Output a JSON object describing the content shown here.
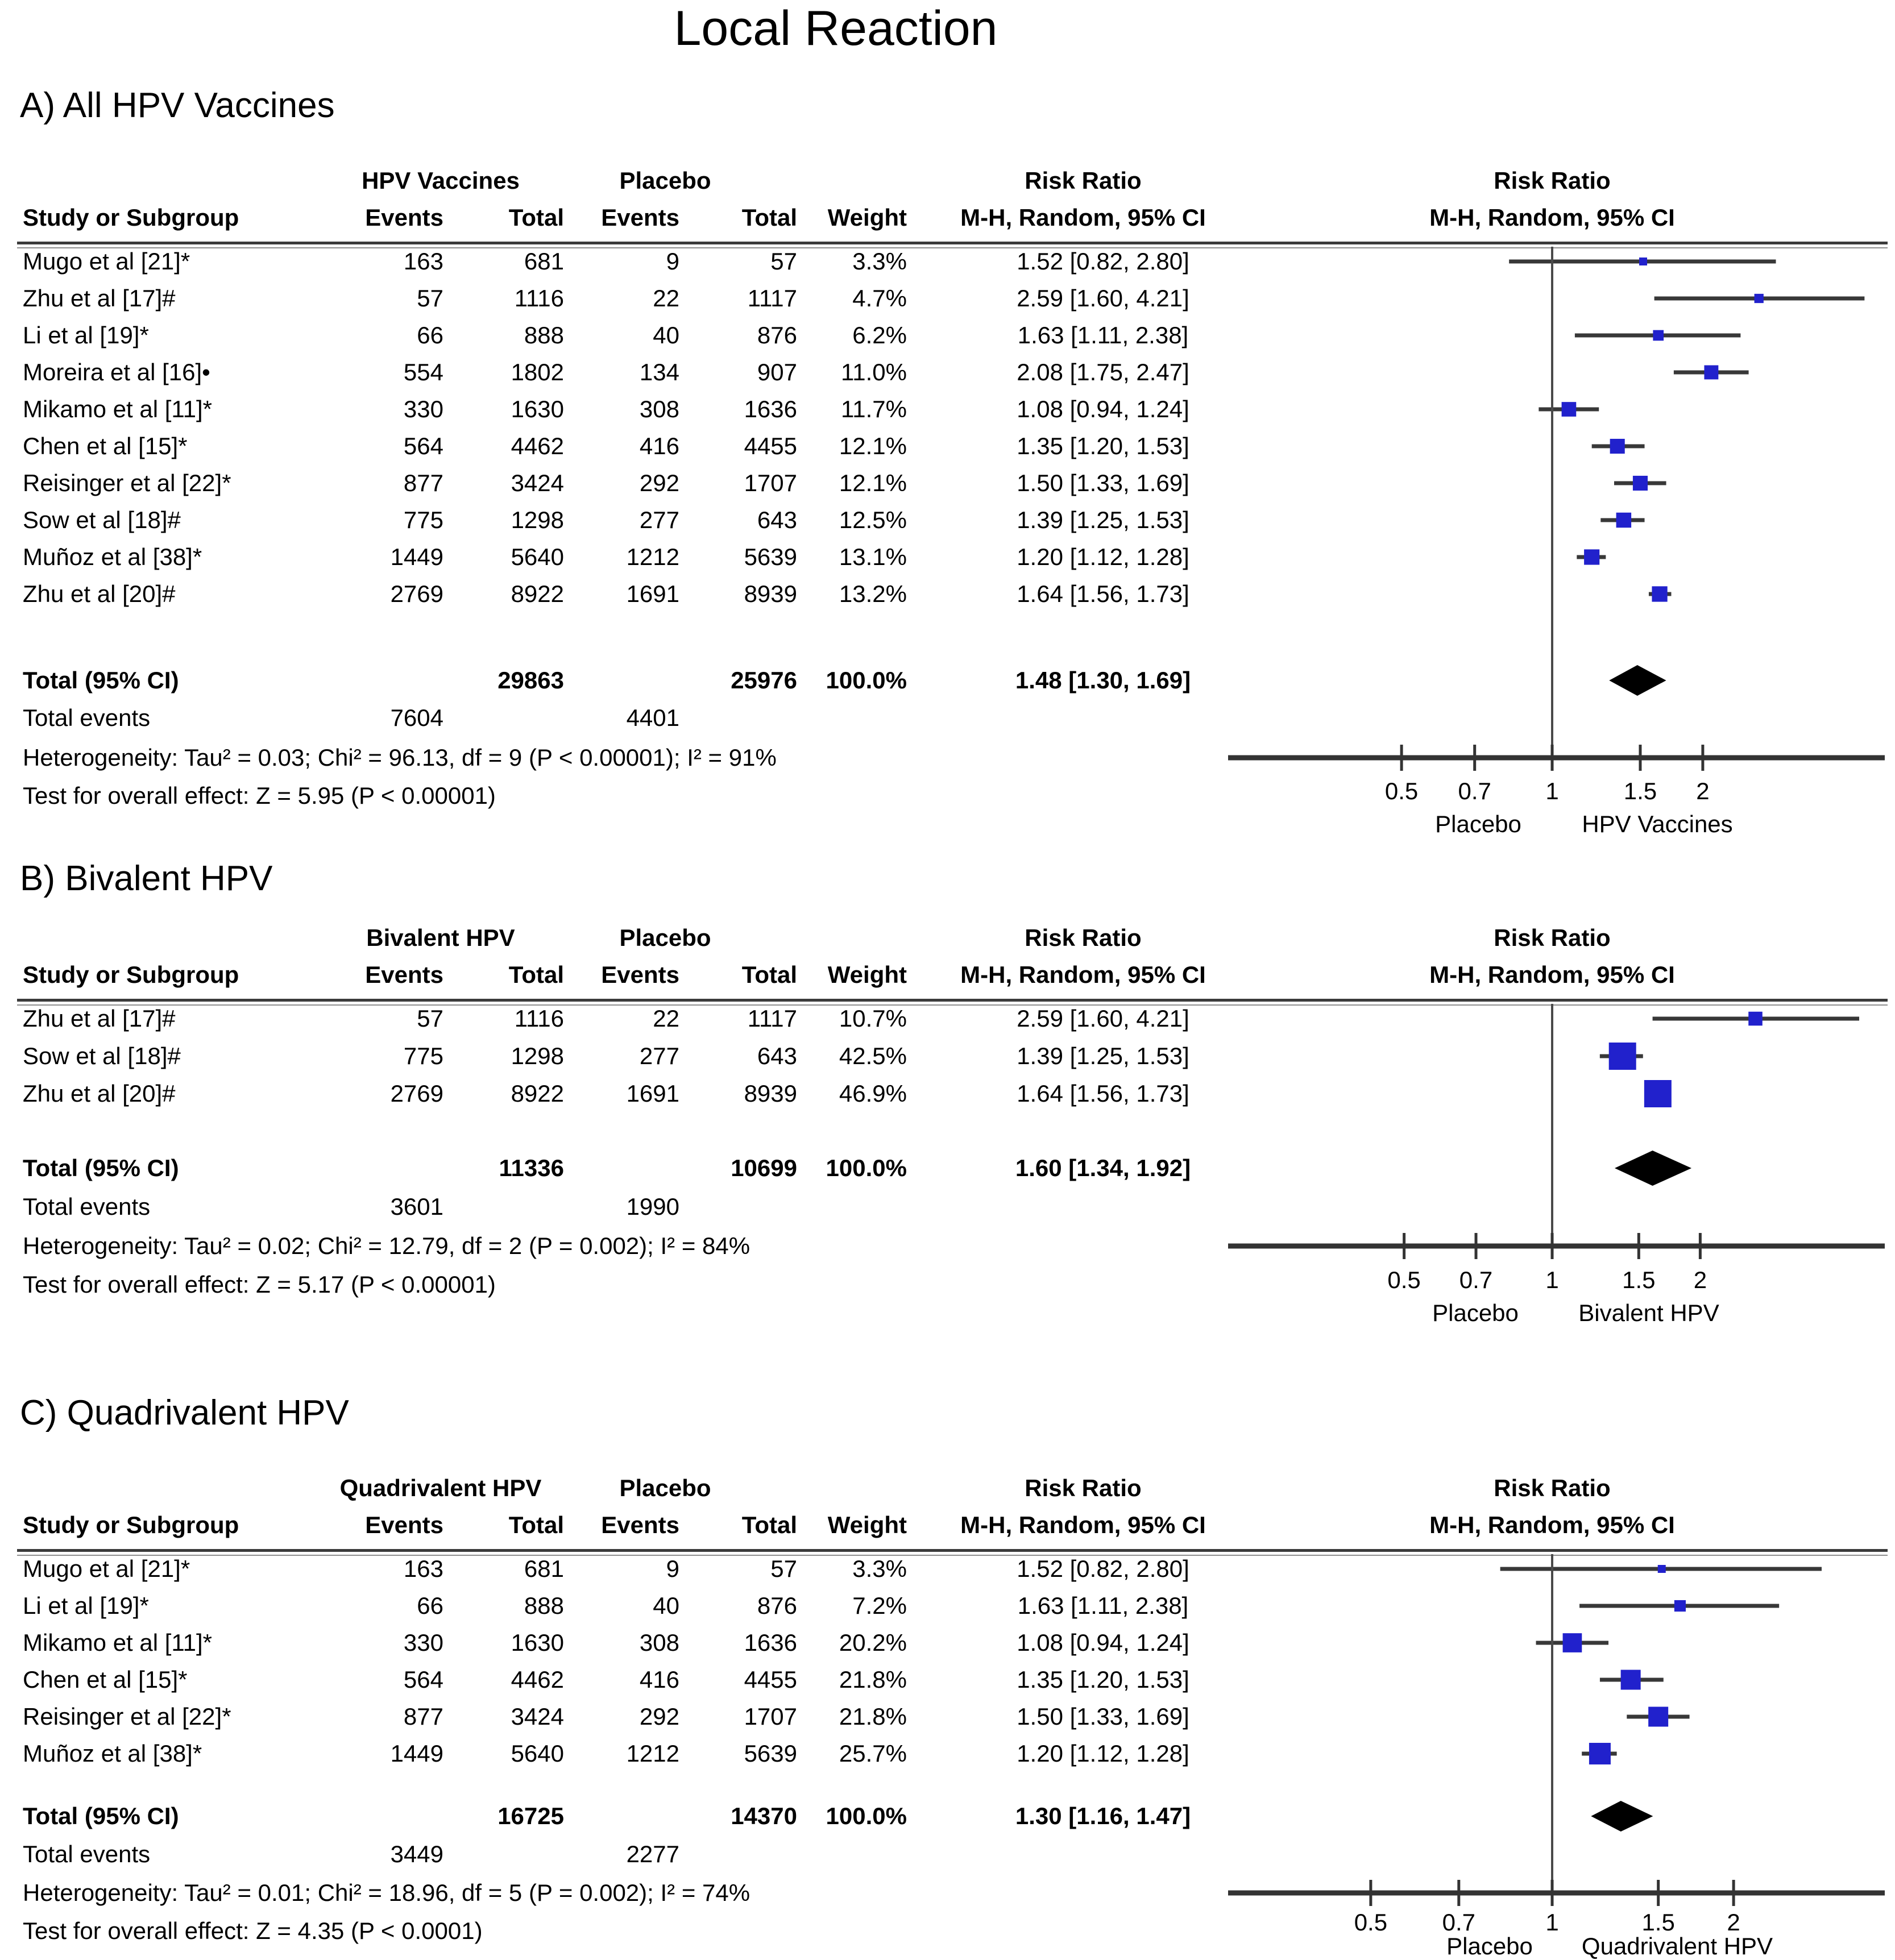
{
  "title": "Local Reaction",
  "colors": {
    "marker_blue": "#2121CC",
    "ci_line": "#383838",
    "diamond_black": "#000000",
    "axis_line": "#333333",
    "text": "#000000"
  },
  "table_headers": {
    "study": "Study or Subgroup",
    "events": "Events",
    "total": "Total",
    "weight": "Weight",
    "rr_line1": "Risk Ratio",
    "rr_line2": "M-H, Random, 95% CI"
  },
  "chart_data": [
    {
      "type": "forest",
      "section_label": "A) All HPV Vaccines",
      "group1_label": "HPV Vaccines",
      "group2_label": "Placebo",
      "studies": [
        {
          "study": "Mugo et al [21]*",
          "events1": "163",
          "total1": "681",
          "events2": "9",
          "total2": "57",
          "weight": "3.3%",
          "w": 3.3,
          "rr_text": "1.52 [0.82, 2.80]",
          "rr": 1.52,
          "lo": 0.82,
          "hi": 2.8
        },
        {
          "study": "Zhu et al [17]#",
          "events1": "57",
          "total1": "1116",
          "events2": "22",
          "total2": "1117",
          "weight": "4.7%",
          "w": 4.7,
          "rr_text": "2.59 [1.60, 4.21]",
          "rr": 2.59,
          "lo": 1.6,
          "hi": 4.21
        },
        {
          "study": "Li et al [19]*",
          "events1": "66",
          "total1": "888",
          "events2": "40",
          "total2": "876",
          "weight": "6.2%",
          "w": 6.2,
          "rr_text": "1.63 [1.11, 2.38]",
          "rr": 1.63,
          "lo": 1.11,
          "hi": 2.38
        },
        {
          "study": "Moreira et al [16]•",
          "events1": "554",
          "total1": "1802",
          "events2": "134",
          "total2": "907",
          "weight": "11.0%",
          "w": 11.0,
          "rr_text": "2.08 [1.75, 2.47]",
          "rr": 2.08,
          "lo": 1.75,
          "hi": 2.47
        },
        {
          "study": "Mikamo et al [11]*",
          "events1": "330",
          "total1": "1630",
          "events2": "308",
          "total2": "1636",
          "weight": "11.7%",
          "w": 11.7,
          "rr_text": "1.08 [0.94, 1.24]",
          "rr": 1.08,
          "lo": 0.94,
          "hi": 1.24
        },
        {
          "study": "Chen et al [15]*",
          "events1": "564",
          "total1": "4462",
          "events2": "416",
          "total2": "4455",
          "weight": "12.1%",
          "w": 12.1,
          "rr_text": "1.35 [1.20, 1.53]",
          "rr": 1.35,
          "lo": 1.2,
          "hi": 1.53
        },
        {
          "study": "Reisinger et al [22]*",
          "events1": "877",
          "total1": "3424",
          "events2": "292",
          "total2": "1707",
          "weight": "12.1%",
          "w": 12.1,
          "rr_text": "1.50 [1.33, 1.69]",
          "rr": 1.5,
          "lo": 1.33,
          "hi": 1.69
        },
        {
          "study": "Sow et al [18]#",
          "events1": "775",
          "total1": "1298",
          "events2": "277",
          "total2": "643",
          "weight": "12.5%",
          "w": 12.5,
          "rr_text": "1.39 [1.25, 1.53]",
          "rr": 1.39,
          "lo": 1.25,
          "hi": 1.53
        },
        {
          "study": "Muñoz et al [38]*",
          "events1": "1449",
          "total1": "5640",
          "events2": "1212",
          "total2": "5639",
          "weight": "13.1%",
          "w": 13.1,
          "rr_text": "1.20 [1.12, 1.28]",
          "rr": 1.2,
          "lo": 1.12,
          "hi": 1.28
        },
        {
          "study": "Zhu et al [20]#",
          "events1": "2769",
          "total1": "8922",
          "events2": "1691",
          "total2": "8939",
          "weight": "13.2%",
          "w": 13.2,
          "rr_text": "1.64 [1.56, 1.73]",
          "rr": 1.64,
          "lo": 1.56,
          "hi": 1.73
        }
      ],
      "total": {
        "label": "Total (95% CI)",
        "total1": "29863",
        "total2": "25976",
        "weight": "100.0%",
        "rr_text": "1.48 [1.30, 1.69]",
        "rr": 1.48,
        "lo": 1.3,
        "hi": 1.69
      },
      "total_events": {
        "label": "Total events",
        "events1": "7604",
        "events2": "4401"
      },
      "heterogeneity": "Heterogeneity: Tau² = 0.03; Chi² = 96.13, df = 9 (P < 0.00001); I² = 91%",
      "overall_effect": "Test for overall effect: Z = 5.95 (P < 0.00001)",
      "axis": {
        "scale": "log",
        "ticks": [
          0.5,
          0.7,
          1,
          1.5,
          2
        ],
        "tick_labels": [
          "0.5",
          "0.7",
          "1",
          "1.5",
          "2"
        ],
        "label_left": "Placebo",
        "label_right": "HPV Vaccines"
      }
    },
    {
      "type": "forest",
      "section_label": "B) Bivalent HPV",
      "group1_label": "Bivalent HPV",
      "group2_label": "Placebo",
      "studies": [
        {
          "study": "Zhu et al [17]#",
          "events1": "57",
          "total1": "1116",
          "events2": "22",
          "total2": "1117",
          "weight": "10.7%",
          "w": 10.7,
          "rr_text": "2.59 [1.60, 4.21]",
          "rr": 2.59,
          "lo": 1.6,
          "hi": 4.21
        },
        {
          "study": "Sow et al [18]#",
          "events1": "775",
          "total1": "1298",
          "events2": "277",
          "total2": "643",
          "weight": "42.5%",
          "w": 42.5,
          "rr_text": "1.39 [1.25, 1.53]",
          "rr": 1.39,
          "lo": 1.25,
          "hi": 1.53
        },
        {
          "study": "Zhu et al [20]#",
          "events1": "2769",
          "total1": "8922",
          "events2": "1691",
          "total2": "8939",
          "weight": "46.9%",
          "w": 46.9,
          "rr_text": "1.64 [1.56, 1.73]",
          "rr": 1.64,
          "lo": 1.56,
          "hi": 1.73
        }
      ],
      "total": {
        "label": "Total (95% CI)",
        "total1": "11336",
        "total2": "10699",
        "weight": "100.0%",
        "rr_text": "1.60 [1.34, 1.92]",
        "rr": 1.6,
        "lo": 1.34,
        "hi": 1.92
      },
      "total_events": {
        "label": "Total events",
        "events1": "3601",
        "events2": "1990"
      },
      "heterogeneity": "Heterogeneity: Tau² = 0.02; Chi² = 12.79, df = 2 (P = 0.002); I² = 84%",
      "overall_effect": "Test for overall effect: Z = 5.17 (P < 0.00001)",
      "axis": {
        "scale": "log",
        "ticks": [
          0.5,
          0.7,
          1,
          1.5,
          2
        ],
        "tick_labels": [
          "0.5",
          "0.7",
          "1",
          "1.5",
          "2"
        ],
        "label_left": "Placebo",
        "label_right": "Bivalent HPV"
      }
    },
    {
      "type": "forest",
      "section_label": "C) Quadrivalent HPV",
      "group1_label": "Quadrivalent HPV",
      "group2_label": "Placebo",
      "studies": [
        {
          "study": "Mugo et al [21]*",
          "events1": "163",
          "total1": "681",
          "events2": "9",
          "total2": "57",
          "weight": "3.3%",
          "w": 3.3,
          "rr_text": "1.52 [0.82, 2.80]",
          "rr": 1.52,
          "lo": 0.82,
          "hi": 2.8
        },
        {
          "study": "Li et al [19]*",
          "events1": "66",
          "total1": "888",
          "events2": "40",
          "total2": "876",
          "weight": "7.2%",
          "w": 7.2,
          "rr_text": "1.63 [1.11, 2.38]",
          "rr": 1.63,
          "lo": 1.11,
          "hi": 2.38
        },
        {
          "study": "Mikamo et al [11]*",
          "events1": "330",
          "total1": "1630",
          "events2": "308",
          "total2": "1636",
          "weight": "20.2%",
          "w": 20.2,
          "rr_text": "1.08 [0.94, 1.24]",
          "rr": 1.08,
          "lo": 0.94,
          "hi": 1.24
        },
        {
          "study": "Chen et al [15]*",
          "events1": "564",
          "total1": "4462",
          "events2": "416",
          "total2": "4455",
          "weight": "21.8%",
          "w": 21.8,
          "rr_text": "1.35 [1.20, 1.53]",
          "rr": 1.35,
          "lo": 1.2,
          "hi": 1.53
        },
        {
          "study": "Reisinger et al [22]*",
          "events1": "877",
          "total1": "3424",
          "events2": "292",
          "total2": "1707",
          "weight": "21.8%",
          "w": 21.8,
          "rr_text": "1.50 [1.33, 1.69]",
          "rr": 1.5,
          "lo": 1.33,
          "hi": 1.69
        },
        {
          "study": "Muñoz et al [38]*",
          "events1": "1449",
          "total1": "5640",
          "events2": "1212",
          "total2": "5639",
          "weight": "25.7%",
          "w": 25.7,
          "rr_text": "1.20 [1.12, 1.28]",
          "rr": 1.2,
          "lo": 1.12,
          "hi": 1.28
        }
      ],
      "total": {
        "label": "Total (95% CI)",
        "total1": "16725",
        "total2": "14370",
        "weight": "100.0%",
        "rr_text": "1.30 [1.16, 1.47]",
        "rr": 1.3,
        "lo": 1.16,
        "hi": 1.47
      },
      "total_events": {
        "label": "Total events",
        "events1": "3449",
        "events2": "2277"
      },
      "heterogeneity": "Heterogeneity: Tau² = 0.01; Chi² = 18.96, df = 5 (P = 0.002); I² = 74%",
      "overall_effect": "Test for overall effect: Z = 4.35 (P < 0.0001)",
      "axis": {
        "scale": "log",
        "ticks": [
          0.5,
          0.7,
          1,
          1.5,
          2
        ],
        "tick_labels": [
          "0.5",
          "0.7",
          "1",
          "1.5",
          "2"
        ],
        "label_left": "Placebo",
        "label_right": "Quadrivalent HPV"
      }
    }
  ]
}
